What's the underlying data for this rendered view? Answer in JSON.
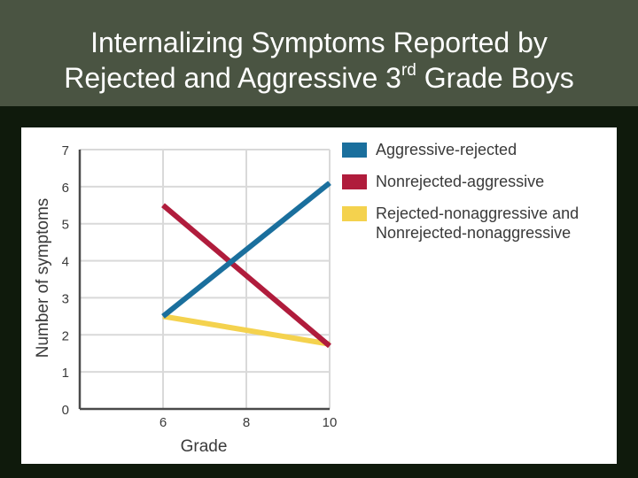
{
  "slide": {
    "title_line1": "Internalizing Symptoms Reported by",
    "title_line2_pre": "Rejected and Aggressive 3",
    "title_line2_sup": "rd",
    "title_line2_post": " Grade Boys"
  },
  "chart_data": {
    "type": "line",
    "title": "Internalizing Symptoms Reported by Rejected and Aggressive 3rd Grade Boys",
    "xlabel": "Grade",
    "ylabel": "Number of symptoms",
    "x": [
      6,
      10
    ],
    "xlim": [
      4,
      10
    ],
    "ylim": [
      0,
      7
    ],
    "xticks": [
      "6",
      "8",
      "10"
    ],
    "yticks": [
      "0",
      "1",
      "2",
      "3",
      "4",
      "5",
      "6",
      "7"
    ],
    "grid": true,
    "legend_position": "top-right",
    "series": [
      {
        "name": "Aggressive-rejected",
        "values": [
          2.5,
          6.1
        ],
        "color": "#1a6f9d"
      },
      {
        "name": "Nonrejected-aggressive",
        "values": [
          5.5,
          1.7
        ],
        "color": "#b01c3c"
      },
      {
        "name": "Rejected-nonaggressive and Nonrejected-nonaggressive",
        "values": [
          2.5,
          1.75
        ],
        "color": "#f4d24e"
      }
    ]
  }
}
